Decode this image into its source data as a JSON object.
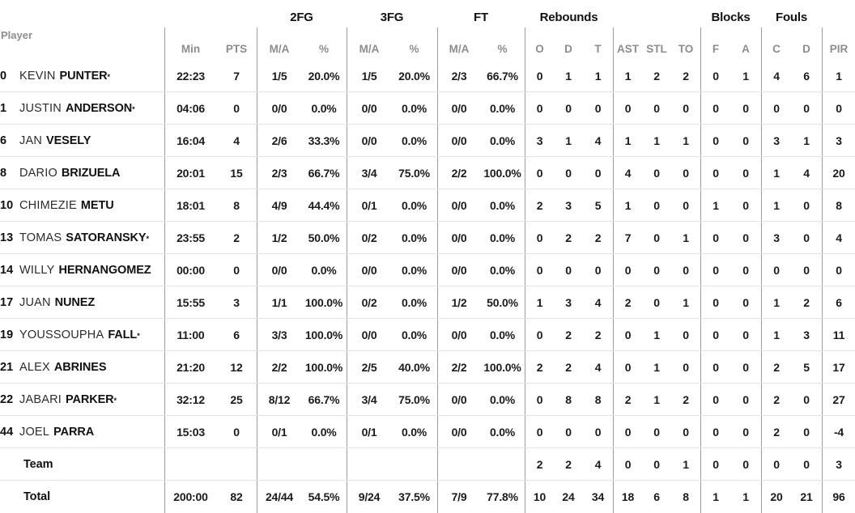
{
  "header": {
    "groups": {
      "fg2": "2FG",
      "fg3": "3FG",
      "ft": "FT",
      "rebounds": "Rebounds",
      "blocks": "Blocks",
      "fouls": "Fouls"
    },
    "sub": {
      "player": "Player",
      "min": "Min",
      "pts": "PTS",
      "ma": "M/A",
      "pct": "%",
      "o": "O",
      "d": "D",
      "t": "T",
      "ast": "AST",
      "stl": "STL",
      "to": "TO",
      "f": "F",
      "a": "A",
      "c": "C",
      "d2": "D",
      "pir": "PIR"
    }
  },
  "starter_mark": "*",
  "rows": [
    {
      "num": "0",
      "first": "KEVIN",
      "last": "PUNTER",
      "starter": true,
      "cells": [
        "22:23",
        "7",
        "1/5",
        "20.0%",
        "1/5",
        "20.0%",
        "2/3",
        "66.7%",
        "0",
        "1",
        "1",
        "1",
        "2",
        "2",
        "0",
        "1",
        "4",
        "6",
        "1"
      ]
    },
    {
      "num": "1",
      "first": "JUSTIN",
      "last": "ANDERSON",
      "starter": true,
      "cells": [
        "04:06",
        "0",
        "0/0",
        "0.0%",
        "0/0",
        "0.0%",
        "0/0",
        "0.0%",
        "0",
        "0",
        "0",
        "0",
        "0",
        "0",
        "0",
        "0",
        "0",
        "0",
        "0"
      ]
    },
    {
      "num": "6",
      "first": "JAN",
      "last": "VESELY",
      "starter": false,
      "cells": [
        "16:04",
        "4",
        "2/6",
        "33.3%",
        "0/0",
        "0.0%",
        "0/0",
        "0.0%",
        "3",
        "1",
        "4",
        "1",
        "1",
        "1",
        "0",
        "0",
        "3",
        "1",
        "3"
      ]
    },
    {
      "num": "8",
      "first": "DARIO",
      "last": "BRIZUELA",
      "starter": false,
      "cells": [
        "20:01",
        "15",
        "2/3",
        "66.7%",
        "3/4",
        "75.0%",
        "2/2",
        "100.0%",
        "0",
        "0",
        "0",
        "4",
        "0",
        "0",
        "0",
        "0",
        "1",
        "4",
        "20"
      ]
    },
    {
      "num": "10",
      "first": "CHIMEZIE",
      "last": "METU",
      "starter": false,
      "cells": [
        "18:01",
        "8",
        "4/9",
        "44.4%",
        "0/1",
        "0.0%",
        "0/0",
        "0.0%",
        "2",
        "3",
        "5",
        "1",
        "0",
        "0",
        "1",
        "0",
        "1",
        "0",
        "8"
      ]
    },
    {
      "num": "13",
      "first": "TOMAS",
      "last": "SATORANSKY",
      "starter": true,
      "cells": [
        "23:55",
        "2",
        "1/2",
        "50.0%",
        "0/2",
        "0.0%",
        "0/0",
        "0.0%",
        "0",
        "2",
        "2",
        "7",
        "0",
        "1",
        "0",
        "0",
        "3",
        "0",
        "4"
      ]
    },
    {
      "num": "14",
      "first": "WILLY",
      "last": "HERNANGOMEZ",
      "starter": false,
      "cells": [
        "00:00",
        "0",
        "0/0",
        "0.0%",
        "0/0",
        "0.0%",
        "0/0",
        "0.0%",
        "0",
        "0",
        "0",
        "0",
        "0",
        "0",
        "0",
        "0",
        "0",
        "0",
        "0"
      ]
    },
    {
      "num": "17",
      "first": "JUAN",
      "last": "NUNEZ",
      "starter": false,
      "cells": [
        "15:55",
        "3",
        "1/1",
        "100.0%",
        "0/2",
        "0.0%",
        "1/2",
        "50.0%",
        "1",
        "3",
        "4",
        "2",
        "0",
        "1",
        "0",
        "0",
        "1",
        "2",
        "6"
      ]
    },
    {
      "num": "19",
      "first": "YOUSSOUPHA",
      "last": "FALL",
      "starter": true,
      "cells": [
        "11:00",
        "6",
        "3/3",
        "100.0%",
        "0/0",
        "0.0%",
        "0/0",
        "0.0%",
        "0",
        "2",
        "2",
        "0",
        "1",
        "0",
        "0",
        "0",
        "1",
        "3",
        "11"
      ]
    },
    {
      "num": "21",
      "first": "ALEX",
      "last": "ABRINES",
      "starter": false,
      "cells": [
        "21:20",
        "12",
        "2/2",
        "100.0%",
        "2/5",
        "40.0%",
        "2/2",
        "100.0%",
        "2",
        "2",
        "4",
        "0",
        "1",
        "0",
        "0",
        "0",
        "2",
        "5",
        "17"
      ]
    },
    {
      "num": "22",
      "first": "JABARI",
      "last": "PARKER",
      "starter": true,
      "cells": [
        "32:12",
        "25",
        "8/12",
        "66.7%",
        "3/4",
        "75.0%",
        "0/0",
        "0.0%",
        "0",
        "8",
        "8",
        "2",
        "1",
        "2",
        "0",
        "0",
        "2",
        "0",
        "27"
      ]
    },
    {
      "num": "44",
      "first": "JOEL",
      "last": "PARRA",
      "starter": false,
      "cells": [
        "15:03",
        "0",
        "0/1",
        "0.0%",
        "0/1",
        "0.0%",
        "0/0",
        "0.0%",
        "0",
        "0",
        "0",
        "0",
        "0",
        "0",
        "0",
        "0",
        "2",
        "0",
        "-4"
      ]
    },
    {
      "num": "",
      "first": "",
      "last": "Team",
      "starter": false,
      "cells": [
        "",
        "",
        "",
        "",
        "",
        "",
        "",
        "",
        "2",
        "2",
        "4",
        "0",
        "0",
        "1",
        "0",
        "0",
        "0",
        "0",
        "3"
      ]
    },
    {
      "num": "",
      "first": "",
      "last": "Total",
      "starter": false,
      "cells": [
        "200:00",
        "82",
        "24/44",
        "54.5%",
        "9/24",
        "37.5%",
        "7/9",
        "77.8%",
        "10",
        "24",
        "34",
        "18",
        "6",
        "8",
        "1",
        "1",
        "20",
        "21",
        "96"
      ]
    }
  ],
  "colors": {
    "text": "#1b1b1b",
    "muted_header": "#8d8d8d",
    "horizontal_rule": "#e4e4e4",
    "vertical_rule": "#9d9d9d"
  }
}
